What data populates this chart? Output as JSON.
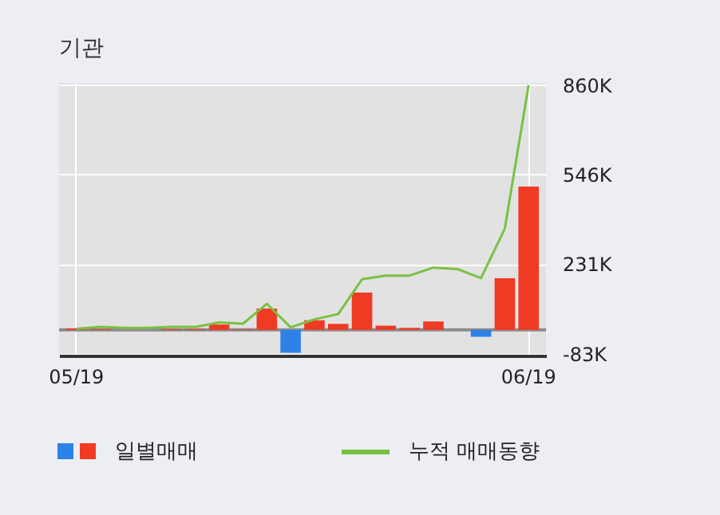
{
  "chart_data": {
    "type": "bar",
    "title": "기관",
    "categories": [
      "05/19",
      null,
      null,
      null,
      null,
      null,
      null,
      null,
      null,
      null,
      null,
      null,
      null,
      null,
      null,
      null,
      null,
      null,
      null,
      "06/19"
    ],
    "series": [
      {
        "name": "일별매매",
        "values": [
          5,
          3,
          null,
          null,
          3,
          3,
          19,
          2,
          75,
          -80,
          34,
          21,
          131,
          15,
          7,
          30,
          0,
          -24,
          182,
          504
        ],
        "colors": [
          "#f03a23",
          "#f03a23",
          "#f03a23",
          "#f03a23",
          "#f03a23",
          "#f03a23",
          "#f03a23",
          "#f03a23",
          "#f03a23",
          "#2c82e6",
          "#f03a23",
          "#f03a23",
          "#f03a23",
          "#f03a23",
          "#f03a23",
          "#f03a23",
          "#f03a23",
          "#2c82e6",
          "#f03a23",
          "#f03a23"
        ]
      },
      {
        "name": "누적 매매동향",
        "type": "line",
        "color": "#79c142",
        "values": [
          4,
          11,
          7,
          7,
          11,
          11,
          26,
          22,
          92,
          9,
          37,
          56,
          178,
          191,
          191,
          219,
          214,
          182,
          356,
          860
        ]
      }
    ],
    "ylim": [
      -90,
      868
    ],
    "yticks": [
      {
        "value": -83,
        "label": "-83K"
      },
      {
        "value": 231,
        "label": "231K"
      },
      {
        "value": 546,
        "label": "546K"
      },
      {
        "value": 860,
        "label": "860K"
      }
    ],
    "ref_lines": [
      {
        "axis": "y",
        "value": 0,
        "color": "#8c8c8c"
      }
    ],
    "grid": true,
    "legend": "bottom"
  }
}
